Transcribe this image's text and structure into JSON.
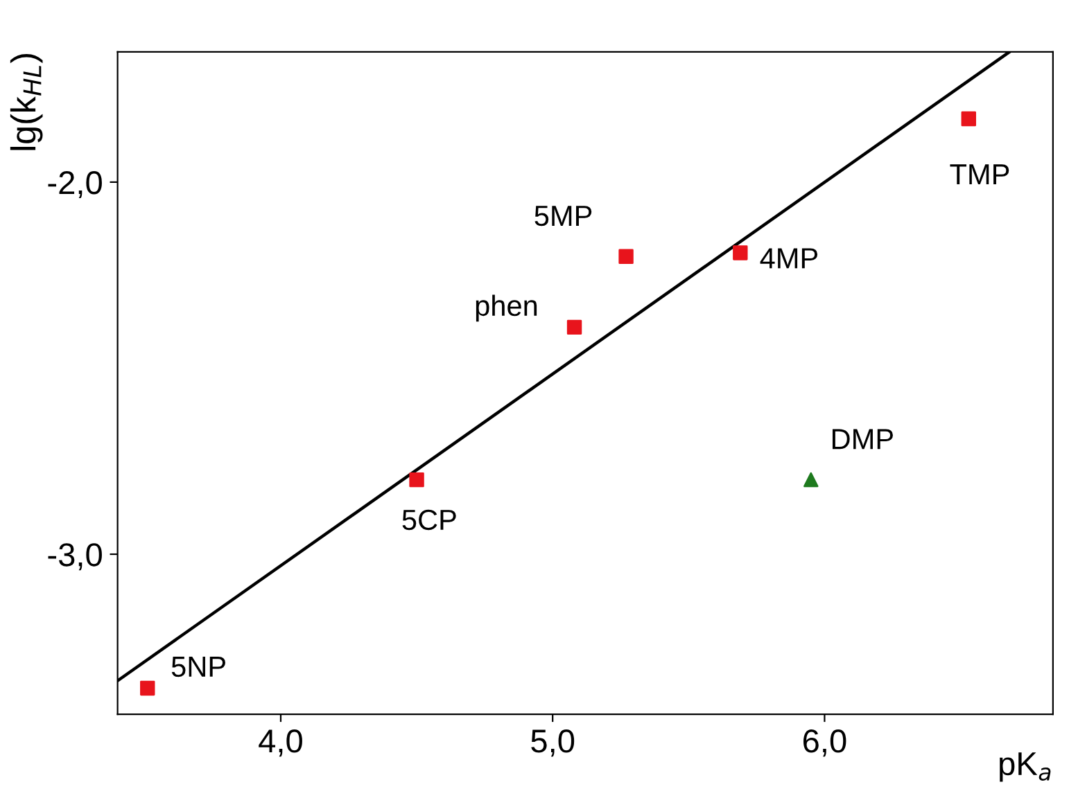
{
  "chart_data": {
    "type": "scatter",
    "xlabel": "pK$_{a}$",
    "ylabel": "lg(k$_{HL}$)",
    "xlim": [
      3.4,
      6.84
    ],
    "ylim": [
      -3.43,
      -1.65
    ],
    "xticks": [
      {
        "value": 4,
        "label": "4,0"
      },
      {
        "value": 5,
        "label": "5,0"
      },
      {
        "value": 6,
        "label": "6,0"
      }
    ],
    "yticks": [
      {
        "value": -2,
        "label": "-2,0"
      },
      {
        "value": -3,
        "label": "-3,0"
      }
    ],
    "grid": false,
    "legend": false,
    "series": [
      {
        "marker": "square",
        "color": "#e8141c",
        "x": [
          3.51,
          4.5,
          5.08,
          5.27,
          5.69,
          6.53
        ],
        "values": [
          -3.36,
          -2.8,
          -2.39,
          -2.2,
          -2.19,
          -1.83
        ]
      },
      {
        "marker": "triangle",
        "color": "#1e7a1e",
        "x": [
          5.95
        ],
        "values": [
          -2.8
        ]
      },
      {
        "type": "line",
        "marker": "none",
        "line_style": "solid",
        "color": "#000000",
        "x": [
          3.4,
          6.68
        ],
        "values": [
          -3.34,
          -1.65
        ]
      }
    ],
    "annotations": [
      {
        "text": "5NP",
        "x": 3.51,
        "y": -3.36
      },
      {
        "text": "5CP",
        "x": 4.5,
        "y": -2.8
      },
      {
        "text": "phen",
        "x": 5.08,
        "y": -2.39
      },
      {
        "text": "5MP",
        "x": 5.27,
        "y": -2.2
      },
      {
        "text": "4MP",
        "x": 5.69,
        "y": -2.19
      },
      {
        "text": "TMP",
        "x": 6.53,
        "y": -1.83
      },
      {
        "text": "DMP",
        "x": 5.95,
        "y": -2.8
      }
    ]
  }
}
